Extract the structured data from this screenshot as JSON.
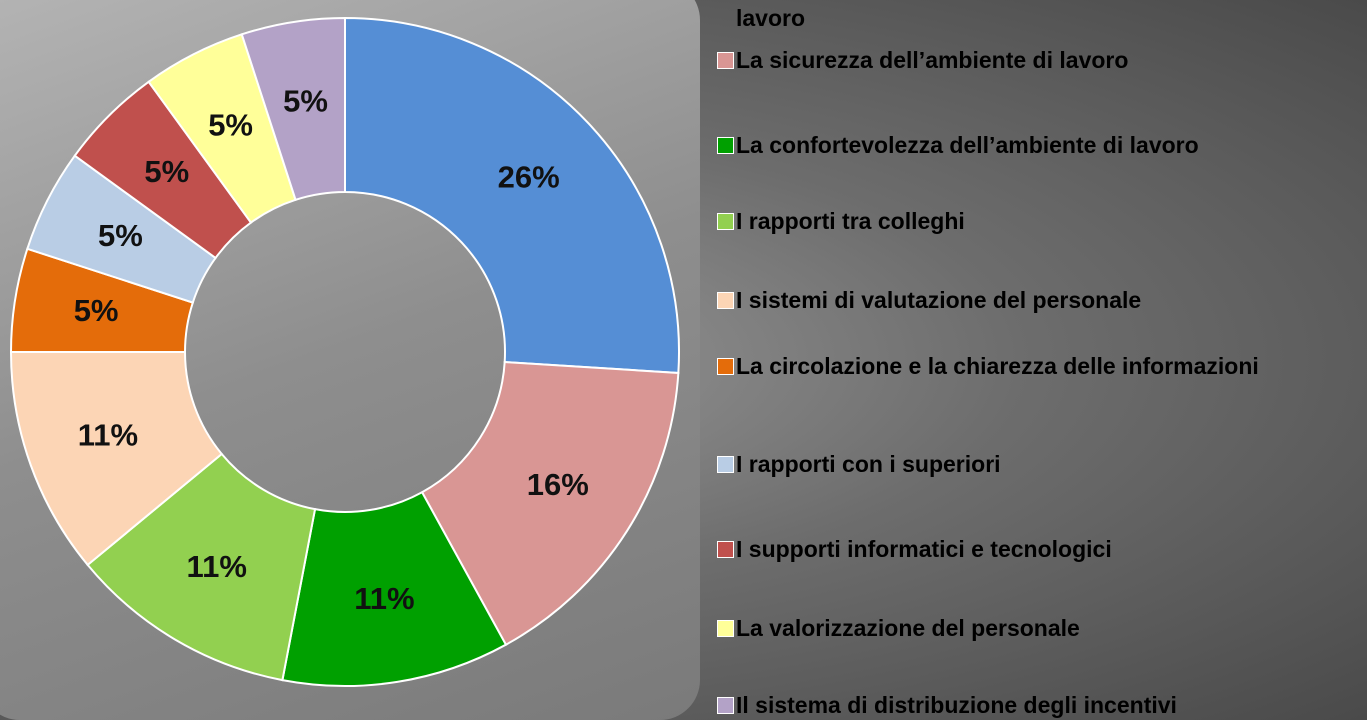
{
  "chart_data": {
    "type": "donut",
    "categories": [
      "lavoro",
      "La sicurezza dell’ambiente di lavoro",
      "La confortevolezza dell’ambiente di lavoro",
      "I rapporti tra colleghi",
      "I sistemi di valutazione del personale",
      "La circolazione e la chiarezza delle informazioni",
      "I rapporti con i superiori",
      "I supporti informatici e tecnologici",
      "La valorizzazione del personale",
      "Il sistema di distribuzione degli incentivi"
    ],
    "values": [
      26,
      16,
      11,
      11,
      11,
      5,
      5,
      5,
      5,
      5
    ],
    "value_labels": [
      "26%",
      "16%",
      "11%",
      "11%",
      "11%",
      "5%",
      "5%",
      "5%",
      "5%",
      "5%"
    ],
    "colors": [
      "#558ed5",
      "#d99694",
      "#00a000",
      "#92d050",
      "#fcd5b5",
      "#e46c0a",
      "#b9cde5",
      "#c0504d",
      "#ffff99",
      "#b3a2c7"
    ]
  }
}
